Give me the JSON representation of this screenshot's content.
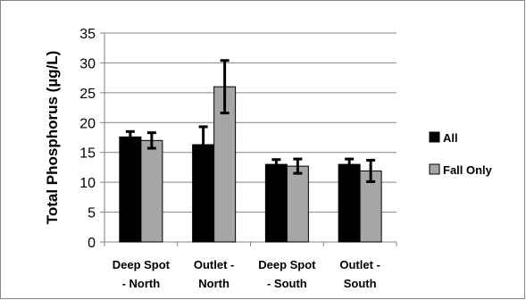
{
  "chart_data": {
    "type": "bar",
    "title": "",
    "xlabel": "",
    "ylabel": "Total Phosphorus (µg/L)",
    "ylim": [
      0,
      35
    ],
    "yticks": [
      0,
      5,
      10,
      15,
      20,
      25,
      30,
      35
    ],
    "grid": true,
    "legend_position": "right",
    "categories": [
      [
        "Deep Spot",
        "- North"
      ],
      [
        "Outlet -",
        "North"
      ],
      [
        "Deep Spot",
        "- South"
      ],
      [
        "Outlet -",
        "South"
      ]
    ],
    "series": [
      {
        "name": "All",
        "color": "#000000",
        "values": [
          17.6,
          16.3,
          13.0,
          13.0
        ],
        "error": [
          0.9,
          3.0,
          0.8,
          0.9
        ]
      },
      {
        "name": "Fall Only",
        "color": "#a6a6a6",
        "values": [
          17.0,
          26.0,
          12.7,
          11.9
        ],
        "error": [
          1.3,
          4.4,
          1.2,
          1.8
        ]
      }
    ]
  }
}
